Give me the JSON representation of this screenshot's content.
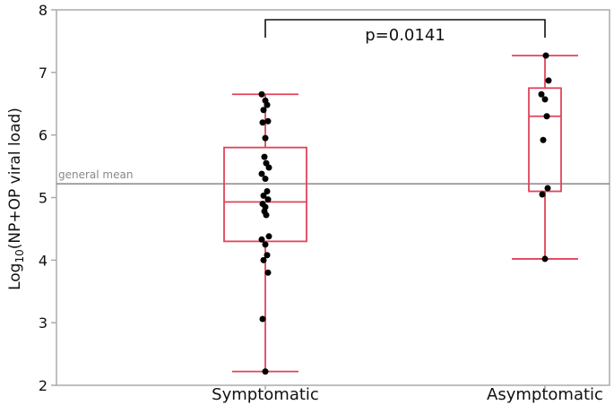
{
  "chart_data": {
    "type": "box",
    "ylabel": "Log10(NP+OP viral load)",
    "ylabel_base": "Log",
    "ylabel_sub": "10",
    "ylabel_rest": "(NP+OP viral load)",
    "ylim": [
      2,
      8
    ],
    "yticks": [
      "2",
      "3",
      "4",
      "5",
      "6",
      "7",
      "8"
    ],
    "categories": [
      "Symptomatic",
      "Asymptomatic"
    ],
    "general_mean": {
      "label": "general mean",
      "value": 5.22
    },
    "significance": {
      "label": "p=0.0141",
      "between": [
        "Symptomatic",
        "Asymptomatic"
      ]
    },
    "grid": false,
    "colors": {
      "box": "#e0445a",
      "points": "#000000",
      "mean_line": "#888888",
      "frame": "#aaaaaa"
    },
    "groups": [
      {
        "name": "Symptomatic",
        "whisker_low": 2.22,
        "q1": 4.3,
        "median": 4.93,
        "q3": 5.8,
        "whisker_high": 6.65,
        "points": [
          2.22,
          3.06,
          3.8,
          4.0,
          4.08,
          4.25,
          4.33,
          4.38,
          4.72,
          4.78,
          4.85,
          4.9,
          4.97,
          5.03,
          5.1,
          5.3,
          5.38,
          5.48,
          5.55,
          5.65,
          5.95,
          6.2,
          6.22,
          6.4,
          6.48,
          6.55,
          6.65
        ]
      },
      {
        "name": "Asymptomatic",
        "whisker_low": 4.02,
        "q1": 5.1,
        "median": 6.3,
        "q3": 6.75,
        "whisker_high": 7.27,
        "points": [
          4.02,
          5.05,
          5.15,
          5.92,
          6.3,
          6.57,
          6.65,
          6.87,
          7.27
        ]
      }
    ]
  }
}
